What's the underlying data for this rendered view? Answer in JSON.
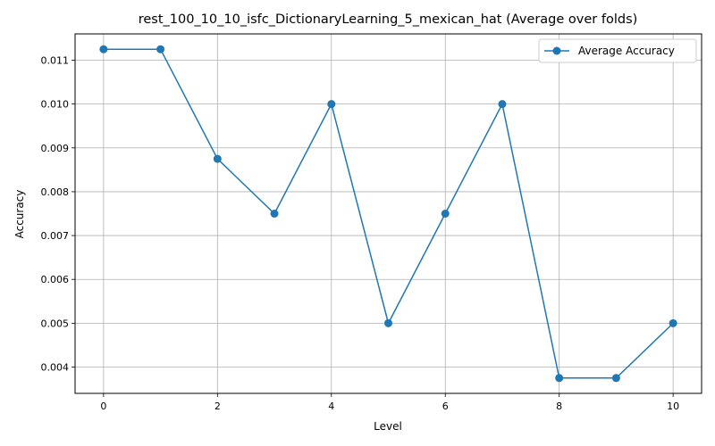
{
  "chart_data": {
    "type": "line",
    "title": "rest_100_10_10_isfc_DictionaryLearning_5_mexican_hat (Average over folds)",
    "xlabel": "Level",
    "ylabel": "Accuracy",
    "xlim": [
      -0.5,
      10.5
    ],
    "ylim": [
      0.0034,
      0.0116
    ],
    "xticks": [
      0,
      2,
      4,
      6,
      8,
      10
    ],
    "xtick_labels": [
      "0",
      "2",
      "4",
      "6",
      "8",
      "10"
    ],
    "yticks": [
      0.004,
      0.005,
      0.006,
      0.007,
      0.008,
      0.009,
      0.01,
      0.011
    ],
    "ytick_labels": [
      "0.004",
      "0.005",
      "0.006",
      "0.007",
      "0.008",
      "0.009",
      "0.010",
      "0.011"
    ],
    "grid": true,
    "legend_position": "top-right",
    "series": [
      {
        "name": "Average Accuracy",
        "color": "#1f77b4",
        "marker": "circle",
        "x": [
          0,
          1,
          2,
          3,
          4,
          5,
          6,
          7,
          8,
          9,
          10
        ],
        "y": [
          0.01125,
          0.01125,
          0.00875,
          0.0075,
          0.01,
          0.005,
          0.0075,
          0.01,
          0.00375,
          0.00375,
          0.005
        ]
      }
    ]
  }
}
